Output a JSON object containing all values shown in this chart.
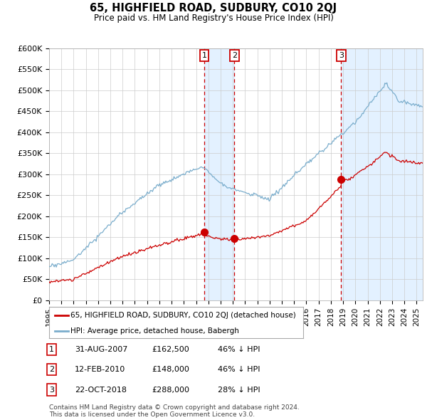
{
  "title": "65, HIGHFIELD ROAD, SUDBURY, CO10 2QJ",
  "subtitle": "Price paid vs. HM Land Registry's House Price Index (HPI)",
  "ylabel_ticks": [
    "£0",
    "£50K",
    "£100K",
    "£150K",
    "£200K",
    "£250K",
    "£300K",
    "£350K",
    "£400K",
    "£450K",
    "£500K",
    "£550K",
    "£600K"
  ],
  "ytick_values": [
    0,
    50000,
    100000,
    150000,
    200000,
    250000,
    300000,
    350000,
    400000,
    450000,
    500000,
    550000,
    600000
  ],
  "xmin": 1995.0,
  "xmax": 2025.5,
  "ymin": 0,
  "ymax": 600000,
  "sale_color": "#cc0000",
  "hpi_color": "#7aadcc",
  "shade_color": "#ddeeff",
  "sales": [
    {
      "date": 2007.667,
      "price": 162500,
      "label": "1"
    },
    {
      "date": 2010.125,
      "price": 148000,
      "label": "2"
    },
    {
      "date": 2018.833,
      "price": 288000,
      "label": "3"
    }
  ],
  "legend_sale_label": "65, HIGHFIELD ROAD, SUDBURY, CO10 2QJ (detached house)",
  "legend_hpi_label": "HPI: Average price, detached house, Babergh",
  "table_rows": [
    {
      "num": "1",
      "date": "31-AUG-2007",
      "price": "£162,500",
      "pct": "46% ↓ HPI"
    },
    {
      "num": "2",
      "date": "12-FEB-2010",
      "price": "£148,000",
      "pct": "46% ↓ HPI"
    },
    {
      "num": "3",
      "date": "22-OCT-2018",
      "price": "£288,000",
      "pct": "28% ↓ HPI"
    }
  ],
  "footnote": "Contains HM Land Registry data © Crown copyright and database right 2024.\nThis data is licensed under the Open Government Licence v3.0.",
  "background_color": "#ffffff"
}
